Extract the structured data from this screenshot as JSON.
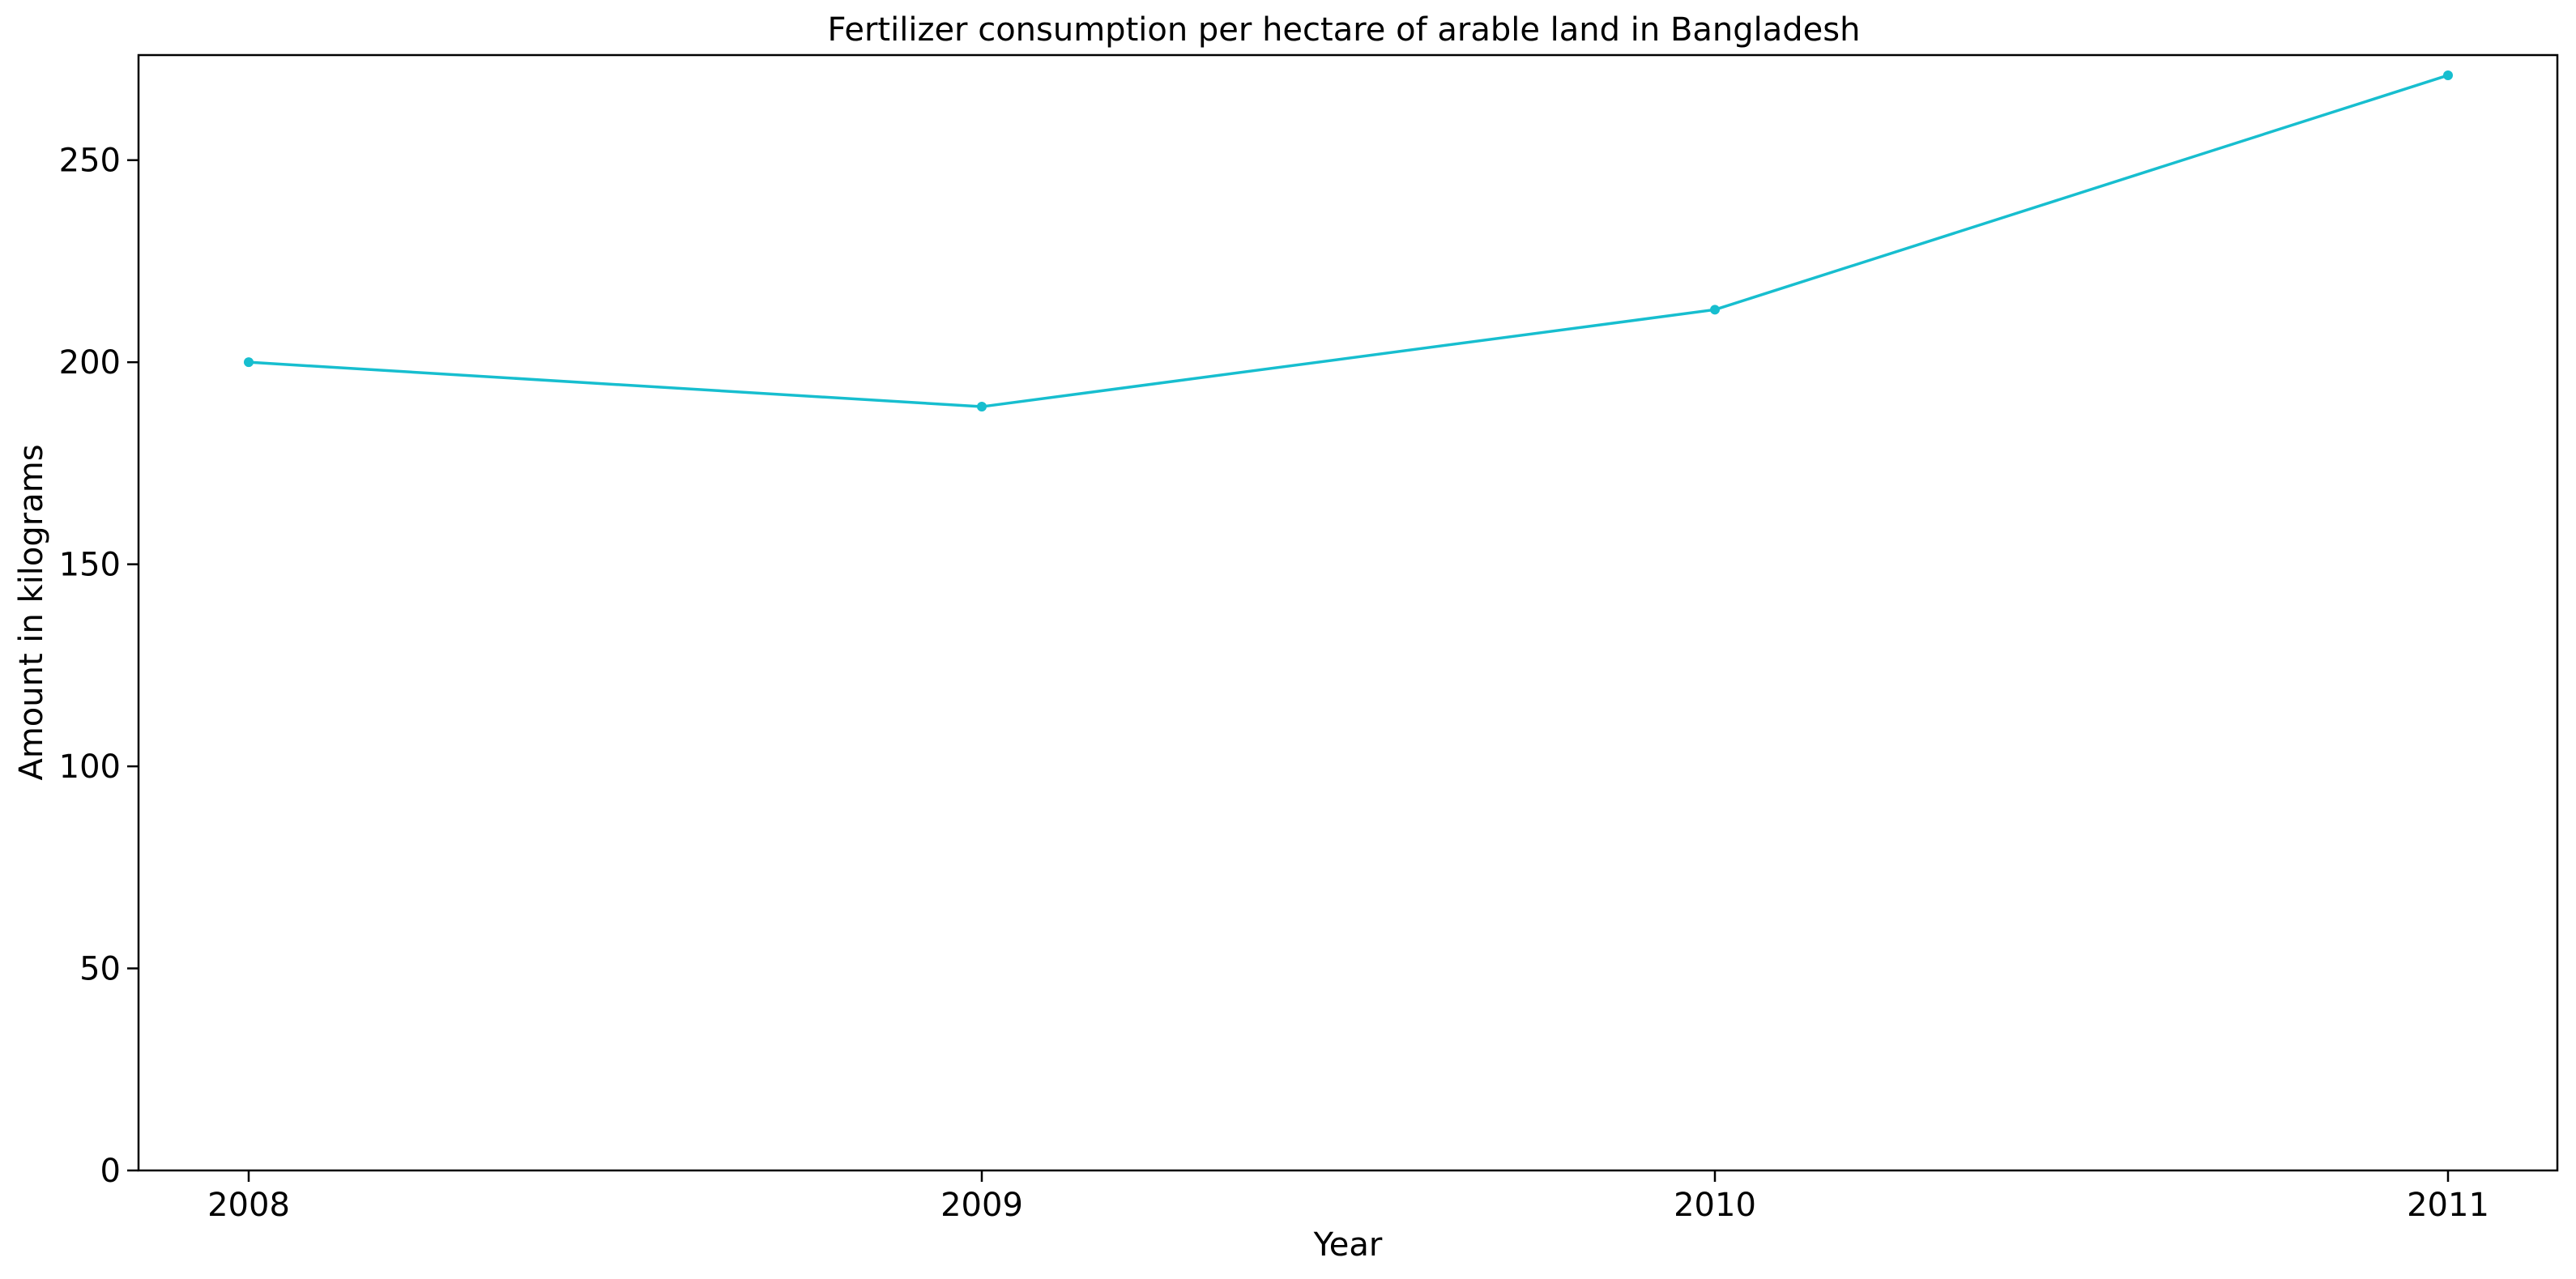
{
  "chart_data": {
    "type": "line",
    "title": "Fertilizer consumption per hectare of arable land in Bangladesh",
    "xlabel": "Year",
    "ylabel": "Amount in kilograms",
    "categories": [
      "2008",
      "2009",
      "2010",
      "2011"
    ],
    "series": [
      {
        "values": [
          200,
          189,
          213,
          271
        ],
        "color": "#17becf"
      }
    ],
    "yticks": [
      0,
      50,
      100,
      150,
      200,
      250
    ],
    "ylim": [
      0,
      276
    ],
    "grid": false,
    "legend": "none",
    "markers": true
  }
}
